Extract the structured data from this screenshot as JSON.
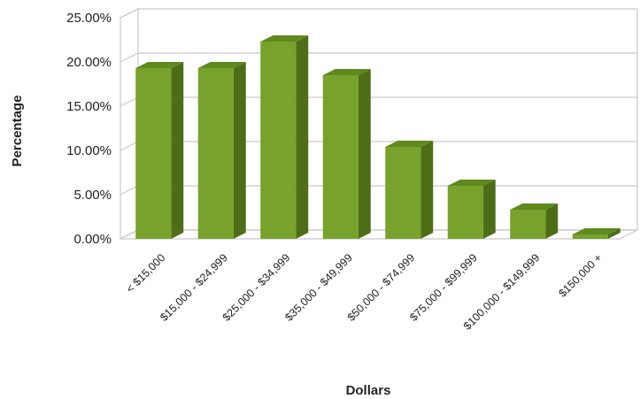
{
  "chart_data": {
    "type": "bar",
    "categories": [
      "< $15,000",
      "$15,000 - $24,999",
      "$25,000 - $34,999",
      "$35,000 - $49,999",
      "$50,000 - $74,999",
      "$75,000 - $99,999",
      "$100,000 - $149,999",
      "$150,000 +"
    ],
    "values": [
      19.3,
      19.3,
      22.3,
      18.5,
      10.4,
      6.0,
      3.3,
      0.5
    ],
    "title": "",
    "xlabel": "Dollars",
    "ylabel": "Percentage",
    "ylim": [
      0,
      25
    ],
    "yticks": [
      0,
      5,
      10,
      15,
      20,
      25
    ],
    "ytick_labels": [
      "0.00%",
      "5.00%",
      "10.00%",
      "15.00%",
      "20.00%",
      "25.00%"
    ],
    "grid": true,
    "style": "3d-column",
    "colors": {
      "bar_front": "#77a22b",
      "bar_side": "#4d6e17",
      "bar_top": "#5e8a1e",
      "grid": "#c9c9c9"
    }
  }
}
